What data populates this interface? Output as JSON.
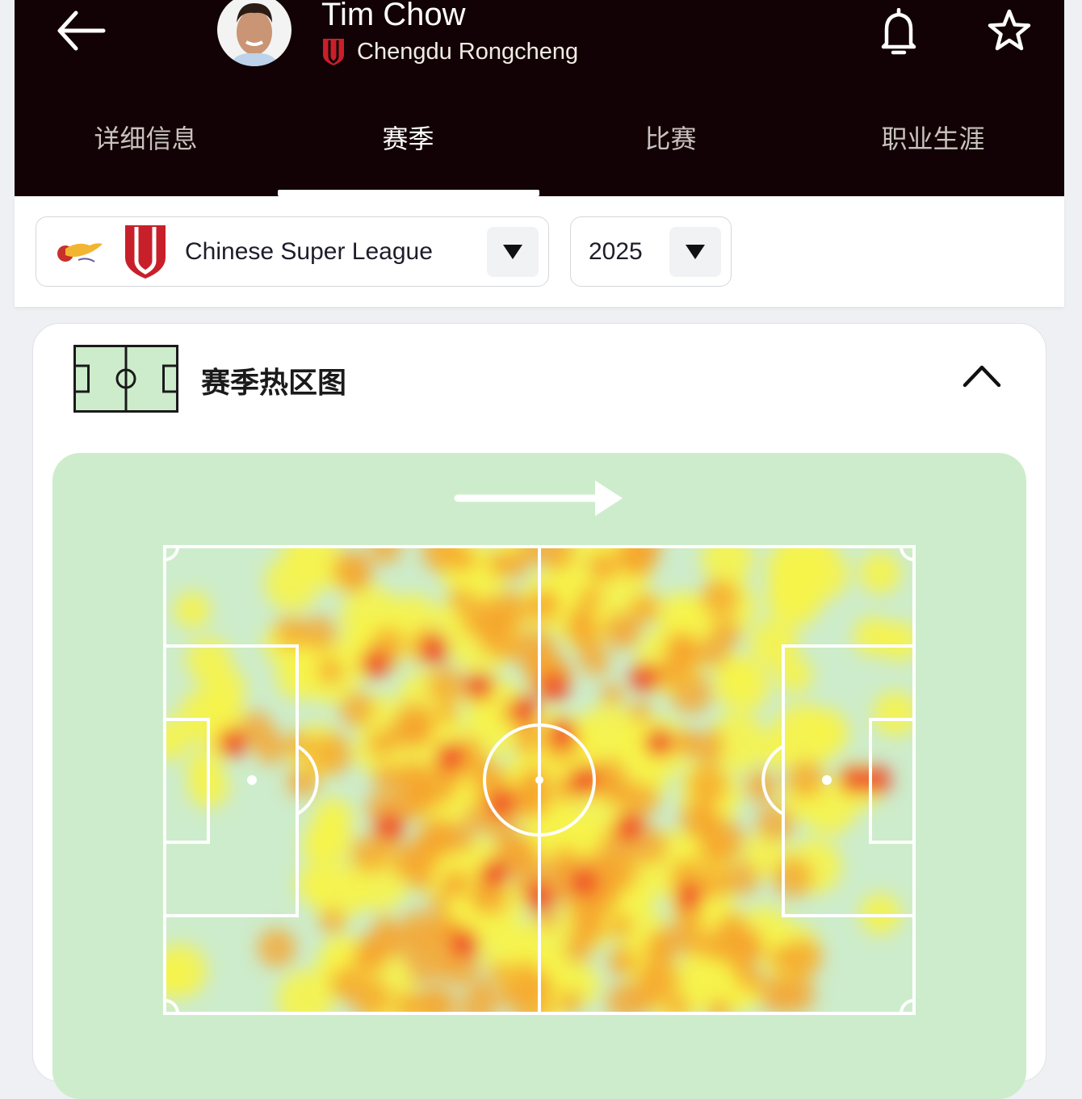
{
  "header": {
    "player_name": "Tim Chow",
    "team_name": "Chengdu Rongcheng",
    "team_color": "#c8202a",
    "background": "#120205"
  },
  "tabs": [
    {
      "label": "详细信息",
      "active": false
    },
    {
      "label": "赛季",
      "active": true
    },
    {
      "label": "比赛",
      "active": false
    },
    {
      "label": "职业生涯",
      "active": false
    }
  ],
  "filters": {
    "league": "Chinese Super League",
    "season": "2025"
  },
  "heatmap": {
    "title": "赛季热区图",
    "attack_direction": "right",
    "pitch_color": "#cdeccb",
    "hotspots": [
      [
        28,
        25
      ],
      [
        36,
        22
      ],
      [
        42,
        30
      ],
      [
        48,
        35
      ],
      [
        52,
        30
      ],
      [
        38,
        45
      ],
      [
        45,
        55
      ],
      [
        53,
        40
      ],
      [
        56,
        50
      ],
      [
        44,
        70
      ],
      [
        50,
        75
      ],
      [
        56,
        72
      ],
      [
        40,
        85
      ],
      [
        62,
        60
      ],
      [
        64,
        28
      ],
      [
        92,
        50
      ],
      [
        95,
        50
      ],
      [
        9,
        42
      ],
      [
        30,
        60
      ],
      [
        70,
        75
      ],
      [
        66,
        42
      ]
    ]
  }
}
